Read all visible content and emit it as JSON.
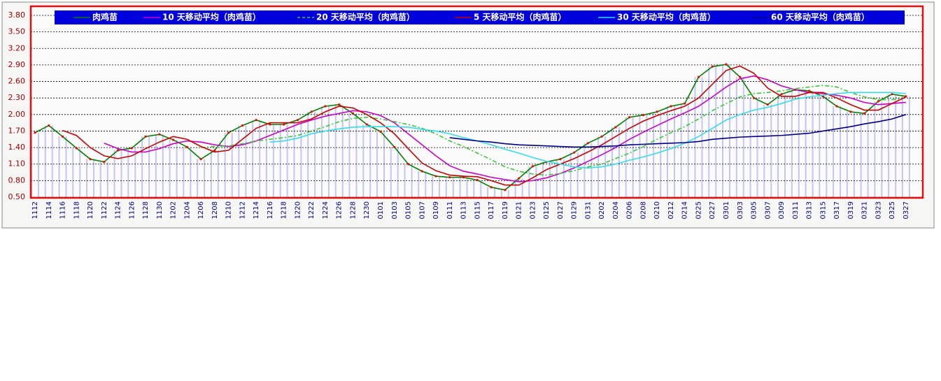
{
  "chart_data": {
    "type": "line",
    "categories": [
      "1112",
      "1114",
      "1116",
      "1118",
      "1120",
      "1122",
      "1124",
      "1126",
      "1128",
      "1130",
      "1202",
      "1204",
      "1206",
      "1208",
      "1210",
      "1212",
      "1214",
      "1216",
      "1218",
      "1220",
      "1222",
      "1224",
      "1226",
      "1228",
      "1230",
      "0101",
      "0103",
      "0105",
      "0107",
      "0109",
      "0111",
      "0113",
      "0115",
      "0117",
      "0119",
      "0121",
      "0123",
      "0125",
      "0127",
      "0129",
      "0131",
      "0202",
      "0204",
      "0206",
      "0208",
      "0210",
      "0212",
      "0214",
      "0225",
      "0227",
      "0301",
      "0303",
      "0305",
      "0307",
      "0309",
      "0311",
      "0313",
      "0315",
      "0317",
      "0319",
      "0321",
      "0323",
      "0325",
      "0327"
    ],
    "series": [
      {
        "name": "肉鸡苗",
        "color": "#008000",
        "markers": true,
        "marker_color": "#ff0000",
        "bars": true,
        "bar_color": "#b8b8f0",
        "values": [
          1.67,
          1.8,
          1.6,
          1.39,
          1.19,
          1.14,
          1.35,
          1.39,
          1.6,
          1.64,
          1.54,
          1.41,
          1.19,
          1.35,
          1.67,
          1.8,
          1.9,
          1.82,
          1.82,
          1.9,
          2.05,
          2.15,
          2.18,
          2.02,
          1.82,
          1.69,
          1.41,
          1.1,
          0.97,
          0.88,
          0.86,
          0.86,
          0.81,
          0.68,
          0.63,
          0.84,
          1.06,
          1.14,
          1.19,
          1.31,
          1.48,
          1.6,
          1.77,
          1.95,
          1.99,
          2.05,
          2.15,
          2.2,
          2.68,
          2.87,
          2.91,
          2.68,
          2.3,
          2.18,
          2.37,
          2.45,
          2.43,
          2.33,
          2.15,
          2.05,
          2.02,
          2.24,
          2.37,
          2.33
        ]
      },
      {
        "name": "10 天移动平均（肉鸡苗）",
        "color": "#cc00cc",
        "values": [
          null,
          null,
          null,
          null,
          null,
          1.48,
          1.38,
          1.32,
          1.32,
          1.38,
          1.47,
          1.52,
          1.5,
          1.45,
          1.42,
          1.45,
          1.52,
          1.62,
          1.72,
          1.82,
          1.9,
          1.97,
          2.02,
          2.07,
          2.05,
          1.98,
          1.85,
          1.65,
          1.45,
          1.25,
          1.07,
          0.97,
          0.92,
          0.86,
          0.82,
          0.78,
          0.8,
          0.85,
          0.93,
          1.03,
          1.15,
          1.27,
          1.4,
          1.55,
          1.68,
          1.8,
          1.92,
          2.03,
          2.15,
          2.32,
          2.5,
          2.65,
          2.7,
          2.63,
          2.52,
          2.45,
          2.4,
          2.38,
          2.35,
          2.3,
          2.22,
          2.18,
          2.2,
          2.22
        ]
      },
      {
        "name": "20 天移动平均（肉鸡苗）",
        "color": "#33cc33",
        "dash": true,
        "values": [
          null,
          null,
          null,
          null,
          null,
          null,
          null,
          null,
          null,
          null,
          null,
          null,
          1.4,
          1.42,
          1.43,
          1.47,
          1.52,
          1.55,
          1.58,
          1.62,
          1.7,
          1.78,
          1.87,
          1.93,
          1.95,
          1.92,
          1.87,
          1.82,
          1.75,
          1.65,
          1.52,
          1.42,
          1.3,
          1.18,
          1.05,
          0.97,
          0.92,
          0.9,
          0.93,
          0.98,
          1.05,
          1.1,
          1.2,
          1.3,
          1.42,
          1.55,
          1.67,
          1.78,
          1.92,
          2.07,
          2.2,
          2.32,
          2.38,
          2.4,
          2.43,
          2.47,
          2.5,
          2.53,
          2.5,
          2.4,
          2.32,
          2.27,
          2.27,
          2.3
        ]
      },
      {
        "name": "5 天移动平均（肉鸡苗）",
        "color": "#cc0000",
        "values": [
          null,
          null,
          1.71,
          1.62,
          1.4,
          1.25,
          1.2,
          1.25,
          1.38,
          1.5,
          1.6,
          1.55,
          1.42,
          1.32,
          1.35,
          1.55,
          1.75,
          1.85,
          1.85,
          1.85,
          1.92,
          2.05,
          2.15,
          2.12,
          2.0,
          1.85,
          1.65,
          1.38,
          1.12,
          0.98,
          0.9,
          0.88,
          0.87,
          0.8,
          0.72,
          0.72,
          0.85,
          1.0,
          1.1,
          1.2,
          1.32,
          1.45,
          1.6,
          1.75,
          1.88,
          1.98,
          2.07,
          2.15,
          2.3,
          2.55,
          2.8,
          2.88,
          2.75,
          2.48,
          2.33,
          2.33,
          2.4,
          2.4,
          2.3,
          2.18,
          2.08,
          2.08,
          2.2,
          2.32
        ]
      },
      {
        "name": "30 天移动平均（肉鸡苗）",
        "color": "#33ddee",
        "values": [
          null,
          null,
          null,
          null,
          null,
          null,
          null,
          null,
          null,
          null,
          null,
          null,
          null,
          null,
          null,
          null,
          null,
          1.5,
          1.52,
          1.57,
          1.65,
          1.7,
          1.74,
          1.77,
          1.78,
          1.78,
          1.78,
          1.77,
          1.73,
          1.7,
          1.65,
          1.58,
          1.52,
          1.45,
          1.37,
          1.3,
          1.22,
          1.15,
          1.1,
          1.05,
          1.03,
          1.05,
          1.1,
          1.17,
          1.23,
          1.3,
          1.38,
          1.48,
          1.6,
          1.75,
          1.9,
          2.0,
          2.08,
          2.13,
          2.2,
          2.28,
          2.32,
          2.35,
          2.38,
          2.4,
          2.4,
          2.4,
          2.4,
          2.38
        ]
      },
      {
        "name": "60 天移动平均（肉鸡苗）",
        "color": "#00008b",
        "values": [
          null,
          null,
          null,
          null,
          null,
          null,
          null,
          null,
          null,
          null,
          null,
          null,
          null,
          null,
          null,
          null,
          null,
          null,
          null,
          null,
          null,
          null,
          null,
          null,
          null,
          null,
          null,
          null,
          null,
          null,
          1.58,
          1.55,
          1.52,
          1.5,
          1.47,
          1.45,
          1.44,
          1.43,
          1.42,
          1.41,
          1.41,
          1.42,
          1.43,
          1.45,
          1.46,
          1.47,
          1.48,
          1.49,
          1.51,
          1.55,
          1.57,
          1.59,
          1.6,
          1.61,
          1.62,
          1.64,
          1.66,
          1.7,
          1.74,
          1.78,
          1.83,
          1.87,
          1.92,
          2.0
        ]
      }
    ],
    "ylim": [
      0.5,
      3.8
    ],
    "yticks": [
      {
        "value": 0.5,
        "label": "0.50"
      },
      {
        "value": 0.8,
        "label": "0.80"
      },
      {
        "value": 1.1,
        "label": "1.10"
      },
      {
        "value": 1.4,
        "label": "1.40"
      },
      {
        "value": 1.7,
        "label": "1.70"
      },
      {
        "value": 2.0,
        "label": "2.00"
      },
      {
        "value": 2.3,
        "label": "2.30"
      },
      {
        "value": 2.6,
        "label": "2.60"
      },
      {
        "value": 2.9,
        "label": "2.90"
      },
      {
        "value": 3.2,
        "label": "3.20"
      },
      {
        "value": 3.5,
        "label": "3.50"
      },
      {
        "value": 3.8,
        "label": "3.80"
      }
    ],
    "grid": true,
    "legend": "top"
  }
}
